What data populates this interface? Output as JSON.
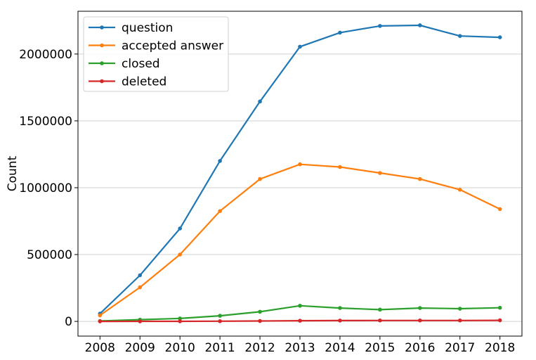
{
  "chart_data": {
    "type": "line",
    "title": "",
    "xlabel": "",
    "ylabel": "Count",
    "x": [
      2008,
      2009,
      2010,
      2011,
      2012,
      2013,
      2014,
      2015,
      2016,
      2017,
      2018
    ],
    "xlim": [
      2007.45,
      2018.55
    ],
    "ylim": [
      -110000,
      2320000
    ],
    "yticks": [
      0,
      500000,
      1000000,
      1500000,
      2000000
    ],
    "ytick_labels": [
      "0",
      "500000",
      "1000000",
      "1500000",
      "2000000"
    ],
    "xtick_labels": [
      "2008",
      "2009",
      "2010",
      "2011",
      "2012",
      "2013",
      "2014",
      "2015",
      "2016",
      "2017",
      "2018"
    ],
    "grid": "horizontal",
    "legend_position": "top-left",
    "series": [
      {
        "name": "question",
        "color": "#1f77b4",
        "values": [
          58000,
          345000,
          695000,
          1200000,
          1645000,
          2055000,
          2160000,
          2210000,
          2215000,
          2135000,
          2125000
        ]
      },
      {
        "name": "accepted answer",
        "color": "#ff7f0e",
        "values": [
          45000,
          255000,
          500000,
          825000,
          1065000,
          1175000,
          1155000,
          1110000,
          1065000,
          985000,
          840000
        ]
      },
      {
        "name": "closed",
        "color": "#2ca02c",
        "values": [
          3000,
          13000,
          22000,
          42000,
          72000,
          117000,
          100000,
          88000,
          100000,
          95000,
          102000
        ]
      },
      {
        "name": "deleted",
        "color": "#d62728",
        "values": [
          100,
          300,
          700,
          1500,
          3000,
          5000,
          6000,
          7000,
          7000,
          7000,
          8000
        ]
      }
    ]
  }
}
